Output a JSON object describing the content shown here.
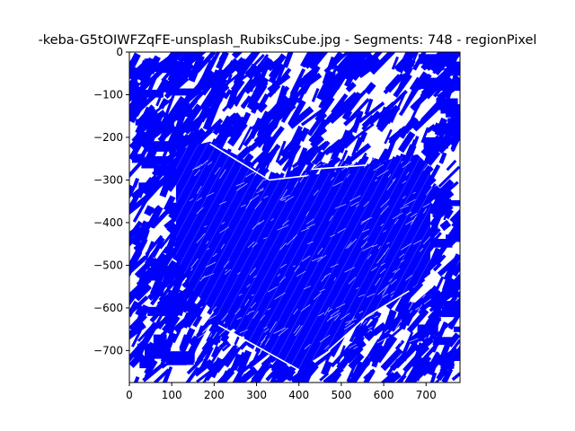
{
  "chart_data": {
    "type": "image-plot",
    "title": "-keba-G5tOIWFZqFE-unsplash_RubiksCube.jpg - Segments: 748 - regionPixel",
    "segments": 748,
    "xlim": [
      0,
      780
    ],
    "ylim": [
      -775,
      0
    ],
    "x_ticks": [
      {
        "value": 0,
        "label": "0"
      },
      {
        "value": 100,
        "label": "100"
      },
      {
        "value": 200,
        "label": "200"
      },
      {
        "value": 300,
        "label": "300"
      },
      {
        "value": 400,
        "label": "400"
      },
      {
        "value": 500,
        "label": "500"
      },
      {
        "value": 600,
        "label": "600"
      },
      {
        "value": 700,
        "label": "700"
      }
    ],
    "y_ticks": [
      {
        "value": 0,
        "label": "0"
      },
      {
        "value": -100,
        "label": "−100"
      },
      {
        "value": -200,
        "label": "−200"
      },
      {
        "value": -300,
        "label": "−300"
      },
      {
        "value": -400,
        "label": "−400"
      },
      {
        "value": -500,
        "label": "−500"
      },
      {
        "value": -600,
        "label": "−600"
      },
      {
        "value": -700,
        "label": "−700"
      }
    ],
    "cube_outline": [
      [
        110,
        -230
      ],
      [
        190,
        -210
      ],
      [
        260,
        -245
      ],
      [
        330,
        -300
      ],
      [
        420,
        -290
      ],
      [
        560,
        -270
      ],
      [
        620,
        -250
      ],
      [
        680,
        -240
      ],
      [
        710,
        -270
      ],
      [
        710,
        -520
      ],
      [
        660,
        -560
      ],
      [
        560,
        -620
      ],
      [
        470,
        -700
      ],
      [
        400,
        -745
      ],
      [
        330,
        -710
      ],
      [
        260,
        -660
      ],
      [
        210,
        -620
      ],
      [
        150,
        -560
      ],
      [
        110,
        -480
      ]
    ],
    "grid": false,
    "colors": {
      "segments": "#0000ff",
      "background": "#ffffff",
      "axes": "#000000"
    }
  }
}
